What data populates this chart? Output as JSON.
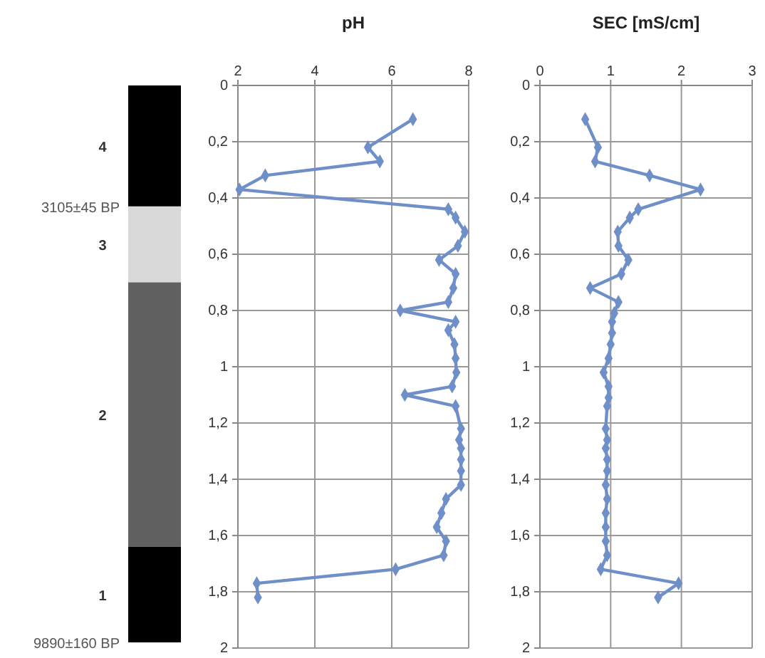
{
  "chart_data": [
    {
      "type": "bar",
      "stacked": true,
      "categories": [
        null
      ],
      "ylim": [
        2,
        0
      ],
      "tick_labels": false,
      "series": [
        {
          "name": "4",
          "color": "#000000",
          "values": [
            0.43
          ]
        },
        {
          "name": "3",
          "color": "#d9d9d9",
          "values": [
            0.27
          ]
        },
        {
          "name": "2",
          "color": "#606060",
          "values": [
            0.94
          ]
        },
        {
          "name": "1",
          "color": "#000000",
          "values": [
            0.34
          ]
        }
      ],
      "annotations": [
        "3105±45 BP",
        "9890±160 BP"
      ]
    },
    {
      "type": "line",
      "title": "pH",
      "marker": "diamond",
      "grid": true,
      "xlim": [
        2,
        8
      ],
      "xticks": [
        2,
        4,
        6,
        8
      ],
      "ylim": [
        2,
        0
      ],
      "yticks": [
        0,
        {
          "value": 0.2,
          "label": "0,2"
        },
        {
          "value": 0.4,
          "label": "0,4"
        },
        {
          "value": 0.6,
          "label": "0,6"
        },
        {
          "value": 0.8,
          "label": "0,8"
        },
        1,
        {
          "value": 1.2,
          "label": "1,2"
        },
        {
          "value": 1.4,
          "label": "1,4"
        },
        {
          "value": 1.6,
          "label": "1,6"
        },
        {
          "value": 1.8,
          "label": "1,8"
        },
        2
      ],
      "series": [
        {
          "color": "#6f8fc9",
          "x": [
            6.55,
            5.38,
            5.69,
            2.71,
            2.04,
            7.47,
            7.66,
            7.9,
            7.72,
            7.23,
            7.66,
            7.6,
            7.47,
            6.22,
            7.66,
            7.47,
            7.63,
            7.66,
            7.68,
            7.57,
            6.34,
            7.66,
            7.8,
            7.75,
            7.8,
            7.8,
            7.8,
            7.8,
            7.41,
            7.29,
            7.17,
            7.41,
            7.35,
            6.1,
            2.49,
            2.52
          ],
          "values": [
            0.12,
            0.22,
            0.27,
            0.32,
            0.37,
            0.44,
            0.47,
            0.52,
            0.57,
            0.62,
            0.67,
            0.72,
            0.77,
            0.8,
            0.84,
            0.87,
            0.92,
            0.97,
            1.02,
            1.07,
            1.1,
            1.14,
            1.22,
            1.26,
            1.29,
            1.33,
            1.37,
            1.42,
            1.47,
            1.52,
            1.57,
            1.62,
            1.67,
            1.72,
            1.77,
            1.82
          ]
        }
      ]
    },
    {
      "type": "line",
      "title": "SEC [mS/cm]",
      "marker": "diamond",
      "grid": true,
      "xlim": [
        0,
        3
      ],
      "xticks": [
        0,
        1,
        2,
        3
      ],
      "ylim": [
        2,
        0
      ],
      "yticks": [
        0,
        {
          "value": 0.2,
          "label": "0,2"
        },
        {
          "value": 0.4,
          "label": "0,4"
        },
        {
          "value": 0.6,
          "label": "0,6"
        },
        {
          "value": 0.8,
          "label": "0,8"
        },
        1,
        {
          "value": 1.2,
          "label": "1,2"
        },
        {
          "value": 1.4,
          "label": "1,4"
        },
        {
          "value": 1.6,
          "label": "1,6"
        },
        {
          "value": 1.8,
          "label": "1,8"
        },
        2
      ],
      "series": [
        {
          "color": "#6f8fc9",
          "x": [
            0.64,
            0.82,
            0.78,
            1.55,
            2.27,
            1.39,
            1.27,
            1.1,
            1.11,
            1.25,
            1.15,
            0.71,
            1.11,
            1.05,
            1.02,
            1.02,
            1.0,
            0.97,
            0.9,
            0.97,
            0.97,
            0.95,
            0.93,
            0.95,
            0.93,
            0.95,
            0.95,
            0.93,
            0.95,
            0.93,
            0.93,
            0.93,
            0.95,
            0.86,
            1.96,
            1.67
          ],
          "values": [
            0.12,
            0.22,
            0.27,
            0.32,
            0.37,
            0.44,
            0.47,
            0.52,
            0.57,
            0.62,
            0.67,
            0.72,
            0.77,
            0.81,
            0.84,
            0.88,
            0.92,
            0.97,
            1.02,
            1.07,
            1.11,
            1.14,
            1.22,
            1.26,
            1.29,
            1.33,
            1.37,
            1.42,
            1.47,
            1.52,
            1.57,
            1.62,
            1.67,
            1.72,
            1.77,
            1.82
          ]
        }
      ]
    }
  ]
}
